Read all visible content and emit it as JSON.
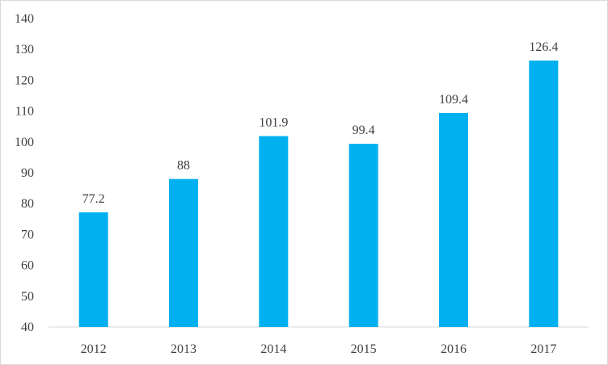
{
  "chart_data": {
    "type": "bar",
    "title": "",
    "xlabel": "",
    "ylabel": "",
    "categories": [
      "2012",
      "2013",
      "2014",
      "2015",
      "2016",
      "2017"
    ],
    "values": [
      77.2,
      88,
      101.9,
      99.4,
      109.4,
      126.4
    ],
    "value_labels": [
      "77.2",
      "88",
      "101.9",
      "99.4",
      "109.4",
      "126.4"
    ],
    "ylim": [
      40,
      140
    ],
    "yticks": [
      40,
      50,
      60,
      70,
      80,
      90,
      100,
      110,
      120,
      130,
      140
    ],
    "grid": false,
    "legend": "none",
    "bar_color": "#00B0F0",
    "axis_color": "#d9d9d9"
  }
}
